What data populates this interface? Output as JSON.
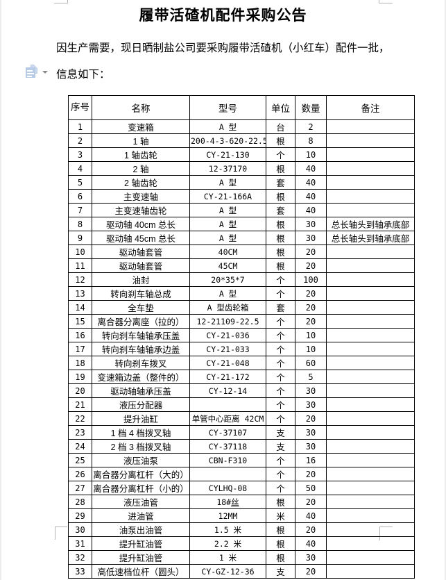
{
  "doc": {
    "title": "履带活碴机配件采购公告",
    "body_line1": "因生产需要，现日晒制盐公司要采购履带活碴机（小红车）配件一批，",
    "body_line2": "信息如下："
  },
  "paste_button": {
    "icon": "paste-options-icon",
    "arrow_icon": "dropdown-arrow-icon"
  },
  "table": {
    "headers": [
      "序号",
      "名称",
      "型号",
      "单位",
      "数量",
      "备注"
    ],
    "rows": [
      {
        "no": "1",
        "name": "变速箱",
        "model": "A 型",
        "unit": "台",
        "qty": "2",
        "remark": ""
      },
      {
        "no": "2",
        "name": "1 轴",
        "model": "200-4-3-620-22.5",
        "unit": "根",
        "qty": "8",
        "remark": ""
      },
      {
        "no": "3",
        "name": "1 轴齿轮",
        "model": "CY-21-130",
        "unit": "个",
        "qty": "10",
        "remark": ""
      },
      {
        "no": "4",
        "name": "2 轴",
        "model": "12-37170",
        "unit": "根",
        "qty": "40",
        "remark": ""
      },
      {
        "no": "5",
        "name": "2 轴齿轮",
        "model": "A 型",
        "unit": "套",
        "qty": "40",
        "remark": ""
      },
      {
        "no": "6",
        "name": "主变速轴",
        "model": "CY-21-166A",
        "unit": "根",
        "qty": "40",
        "remark": ""
      },
      {
        "no": "7",
        "name": "主变速轴齿轮",
        "model": "A 型",
        "unit": "套",
        "qty": "40",
        "remark": ""
      },
      {
        "no": "8",
        "name": "驱动轴 40cm 总长",
        "model": "A 型",
        "unit": "根",
        "qty": "30",
        "remark": "总长轴头到轴承底部"
      },
      {
        "no": "9",
        "name": "驱动轴 45cm 总长",
        "model": "A 型",
        "unit": "根",
        "qty": "30",
        "remark": "总长轴头到轴承底部"
      },
      {
        "no": "10",
        "name": "驱动轴套管",
        "model": "40CM",
        "unit": "根",
        "qty": "20",
        "remark": ""
      },
      {
        "no": "11",
        "name": "驱动轴套管",
        "model": "45CM",
        "unit": "根",
        "qty": "20",
        "remark": ""
      },
      {
        "no": "12",
        "name": "油封",
        "model": "20*35*7",
        "unit": "个",
        "qty": "100",
        "remark": ""
      },
      {
        "no": "13",
        "name": "转向刹车轴总成",
        "model": "A 型",
        "unit": "个",
        "qty": "20",
        "remark": ""
      },
      {
        "no": "14",
        "name": "全车垫",
        "model": "A 型齿轮箱",
        "unit": "套",
        "qty": "20",
        "remark": ""
      },
      {
        "no": "15",
        "name": "离合器分离座（拉的）",
        "model": "12-21109-22.5",
        "unit": "个",
        "qty": "20",
        "remark": ""
      },
      {
        "no": "16",
        "name": "转向刹车轴轴承压盖",
        "model": "CY-21-036",
        "unit": "个",
        "qty": "10",
        "remark": "",
        "model_align": "left"
      },
      {
        "no": "17",
        "name": "转向刹车轴轴承边盖",
        "model": "CY-21-033",
        "unit": "个",
        "qty": "10",
        "remark": ""
      },
      {
        "no": "18",
        "name": "转向刹车拨叉",
        "model": "CY-21-048",
        "unit": "个",
        "qty": "60",
        "remark": ""
      },
      {
        "no": "19",
        "name": "变速箱边盖（整件的）",
        "model": "CY-21-172",
        "unit": "个",
        "qty": "5",
        "remark": ""
      },
      {
        "no": "20",
        "name": "驱动轴轴承压盖",
        "model": "CY-12-14",
        "unit": "个",
        "qty": "30",
        "remark": ""
      },
      {
        "no": "21",
        "name": "液压分配器",
        "model": "",
        "unit": "个",
        "qty": "30",
        "remark": ""
      },
      {
        "no": "22",
        "name": "提升油缸",
        "model": "单管中心距离 42CM",
        "unit": "个",
        "qty": "20",
        "remark": ""
      },
      {
        "no": "23",
        "name": "1 档 4 档拨叉轴",
        "model": "CY-37107",
        "unit": "支",
        "qty": "30",
        "remark": ""
      },
      {
        "no": "24",
        "name": "2 档 3 档拨叉轴",
        "model": "CY-37118",
        "unit": "支",
        "qty": "30",
        "remark": ""
      },
      {
        "no": "25",
        "name": "液压油泵",
        "model": "CBN-F310",
        "unit": "个",
        "qty": "16",
        "remark": ""
      },
      {
        "no": "26",
        "name": "离合器分离杠杆（大的）",
        "model": "",
        "unit": "个",
        "qty": "20",
        "remark": ""
      },
      {
        "no": "27",
        "name": "离合器分离杠杆（小的）",
        "model": "CYLHQ-08",
        "unit": "个",
        "qty": "50",
        "remark": ""
      },
      {
        "no": "28",
        "name": "液压油管",
        "model": "18#",
        "model_underline": "丝",
        "unit": "根",
        "qty": "20",
        "remark": ""
      },
      {
        "no": "29",
        "name": "进油管",
        "model": "12MM",
        "unit": "米",
        "qty": "40",
        "remark": ""
      },
      {
        "no": "30",
        "name": "油泵出油管",
        "model": "1.5 米",
        "unit": "根",
        "qty": "20",
        "remark": ""
      },
      {
        "no": "31",
        "name": "提升缸油管",
        "model": "2.2 米",
        "unit": "根",
        "qty": "40",
        "remark": ""
      },
      {
        "no": "32",
        "name": "提升缸油管",
        "model": "1 米",
        "unit": "根",
        "qty": "30",
        "remark": ""
      },
      {
        "no": "33",
        "name": "高低速档位杆（圆头）",
        "model": "CY-GZ-12-36",
        "unit": "支",
        "qty": "20",
        "remark": ""
      }
    ]
  }
}
